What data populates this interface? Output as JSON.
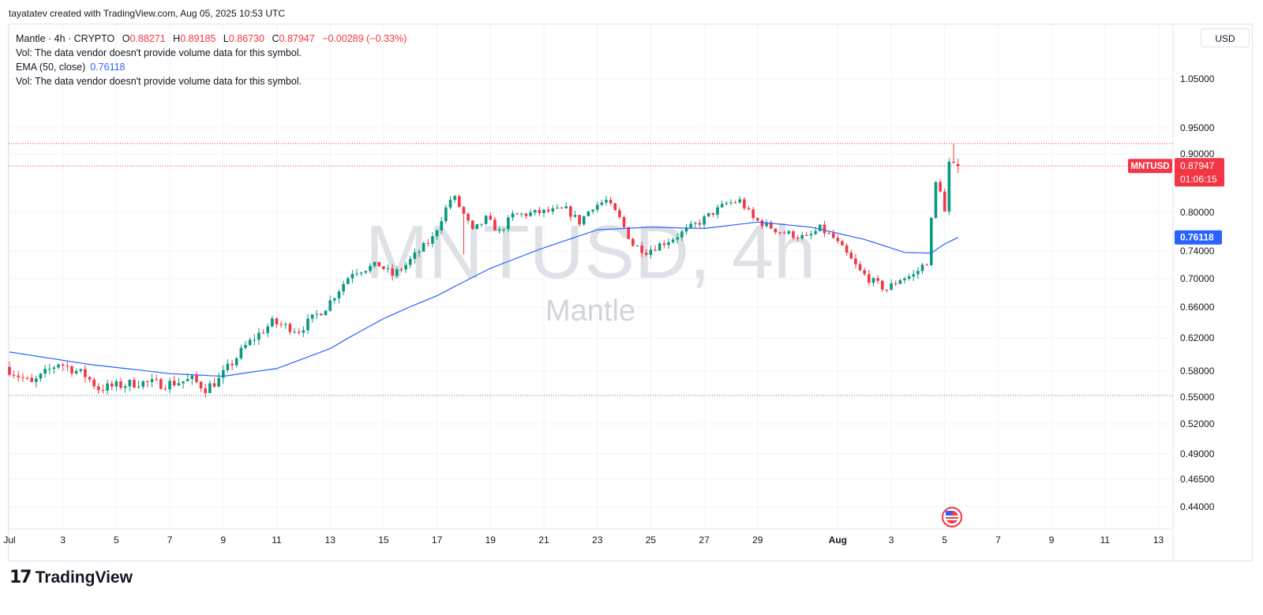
{
  "credit": "tayatatev created with TradingView.com, Aug 05, 2025 10:53 UTC",
  "legend": {
    "symbol_line": "Mantle · 4h · CRYPTO",
    "o_label": "O",
    "o_value": "0.88271",
    "h_label": "H",
    "h_value": "0.89185",
    "l_label": "L",
    "l_value": "0.86730",
    "c_label": "C",
    "c_value": "0.87947",
    "change": "−0.00289 (−0.33%)",
    "vol_note_1": "Vol: The data vendor doesn't provide volume data for this symbol.",
    "ema_label": "EMA (50, close)",
    "ema_value": "0.76118",
    "vol_note_2": "Vol: The data vendor doesn't provide volume data for this symbol."
  },
  "currency_button": "USD",
  "brand": {
    "name": "TradingView",
    "icon": "tradingview-logo-icon"
  },
  "flag_icon": "us-flag-icon",
  "chart_data": {
    "type": "candlestick",
    "symbol": "MNTUSD",
    "interval": "4h",
    "watermark": "MNTUSD, 4h",
    "watermark_sub": "Mantle",
    "y_ticks": [
      "1.05000",
      "0.95000",
      "0.90000",
      "0.80000",
      "0.74000",
      "0.70000",
      "0.66000",
      "0.62000",
      "0.58000",
      "0.55000",
      "0.52000",
      "0.49000",
      "0.46500",
      "0.44000"
    ],
    "y_range": [
      0.415,
      1.1
    ],
    "x_ticks": [
      "Jul",
      "3",
      "5",
      "7",
      "9",
      "11",
      "13",
      "15",
      "17",
      "19",
      "21",
      "23",
      "25",
      "27",
      "29",
      "Aug",
      "3",
      "5",
      "7",
      "9",
      "11",
      "13"
    ],
    "x_range_days": [
      "2025-07-01",
      "2025-08-14"
    ],
    "price_label": {
      "symbol": "MNTUSD",
      "value": "0.87947",
      "countdown": "01:06:15",
      "color": "#f23645"
    },
    "ema_label": {
      "value": "0.76118",
      "color": "#2962ff"
    },
    "horizontal_lines": [
      {
        "value": 0.92,
        "style": "dotted",
        "color": "#f23645"
      },
      {
        "value": 0.87947,
        "style": "dotted",
        "color": "#f23645"
      },
      {
        "value": 0.552,
        "style": "dotted",
        "color": "#787b86"
      }
    ],
    "colors": {
      "up": "#089981",
      "down": "#f23645",
      "ema": "#2962ff",
      "grid": "#f0f3fa"
    },
    "anchors": [
      [
        "2025-07-01",
        0.585
      ],
      [
        "2025-07-02",
        0.565
      ],
      [
        "2025-07-03",
        0.59
      ],
      [
        "2025-07-04",
        0.575
      ],
      [
        "2025-07-04 12:00",
        0.56
      ],
      [
        "2025-07-05",
        0.562
      ],
      [
        "2025-07-06",
        0.567
      ],
      [
        "2025-07-07",
        0.565
      ],
      [
        "2025-07-08",
        0.57
      ],
      [
        "2025-07-08 12:00",
        0.56
      ],
      [
        "2025-07-09",
        0.57
      ],
      [
        "2025-07-10",
        0.61
      ],
      [
        "2025-07-11",
        0.64
      ],
      [
        "2025-07-12",
        0.63
      ],
      [
        "2025-07-13",
        0.66
      ],
      [
        "2025-07-14",
        0.71
      ],
      [
        "2025-07-15",
        0.72
      ],
      [
        "2025-07-15 12:00",
        0.705
      ],
      [
        "2025-07-16",
        0.72
      ],
      [
        "2025-07-17",
        0.76
      ],
      [
        "2025-07-17 18:00",
        0.83
      ],
      [
        "2025-07-18 12:00",
        0.77
      ],
      [
        "2025-07-19",
        0.79
      ],
      [
        "2025-07-19 12:00",
        0.77
      ],
      [
        "2025-07-20",
        0.795
      ],
      [
        "2025-07-21",
        0.8
      ],
      [
        "2025-07-22",
        0.805
      ],
      [
        "2025-07-22 12:00",
        0.785
      ],
      [
        "2025-07-23",
        0.81
      ],
      [
        "2025-07-23 12:00",
        0.82
      ],
      [
        "2025-07-24",
        0.79
      ],
      [
        "2025-07-24 12:00",
        0.75
      ],
      [
        "2025-07-25",
        0.74
      ],
      [
        "2025-07-26",
        0.76
      ],
      [
        "2025-07-27",
        0.785
      ],
      [
        "2025-07-28",
        0.815
      ],
      [
        "2025-07-28 12:00",
        0.82
      ],
      [
        "2025-07-29",
        0.79
      ],
      [
        "2025-07-30",
        0.77
      ],
      [
        "2025-07-31",
        0.76
      ],
      [
        "2025-07-31 12:00",
        0.775
      ],
      [
        "2025-08-01",
        0.76
      ],
      [
        "2025-08-02",
        0.71
      ],
      [
        "2025-08-02 12:00",
        0.695
      ],
      [
        "2025-08-03",
        0.685
      ],
      [
        "2025-08-03 12:00",
        0.7
      ],
      [
        "2025-08-04",
        0.705
      ],
      [
        "2025-08-04 12:00",
        0.725
      ],
      [
        "2025-08-04 20:00",
        0.85
      ],
      [
        "2025-08-05",
        0.84
      ],
      [
        "2025-08-05 04:00",
        0.8
      ],
      [
        "2025-08-05 08:00",
        0.88271
      ],
      [
        "2025-08-05 12:00",
        0.87947
      ]
    ],
    "ema_anchors": [
      [
        "2025-07-01",
        0.603
      ],
      [
        "2025-07-04",
        0.588
      ],
      [
        "2025-07-07",
        0.577
      ],
      [
        "2025-07-09",
        0.574
      ],
      [
        "2025-07-11",
        0.583
      ],
      [
        "2025-07-13",
        0.607
      ],
      [
        "2025-07-15",
        0.645
      ],
      [
        "2025-07-17",
        0.676
      ],
      [
        "2025-07-19",
        0.715
      ],
      [
        "2025-07-21",
        0.745
      ],
      [
        "2025-07-23",
        0.773
      ],
      [
        "2025-07-25",
        0.777
      ],
      [
        "2025-07-27",
        0.775
      ],
      [
        "2025-07-29",
        0.785
      ],
      [
        "2025-07-31",
        0.777
      ],
      [
        "2025-08-02",
        0.758
      ],
      [
        "2025-08-03 12:00",
        0.738
      ],
      [
        "2025-08-04 12:00",
        0.737
      ],
      [
        "2025-08-05",
        0.751
      ],
      [
        "2025-08-05 12:00",
        0.76118
      ]
    ]
  }
}
